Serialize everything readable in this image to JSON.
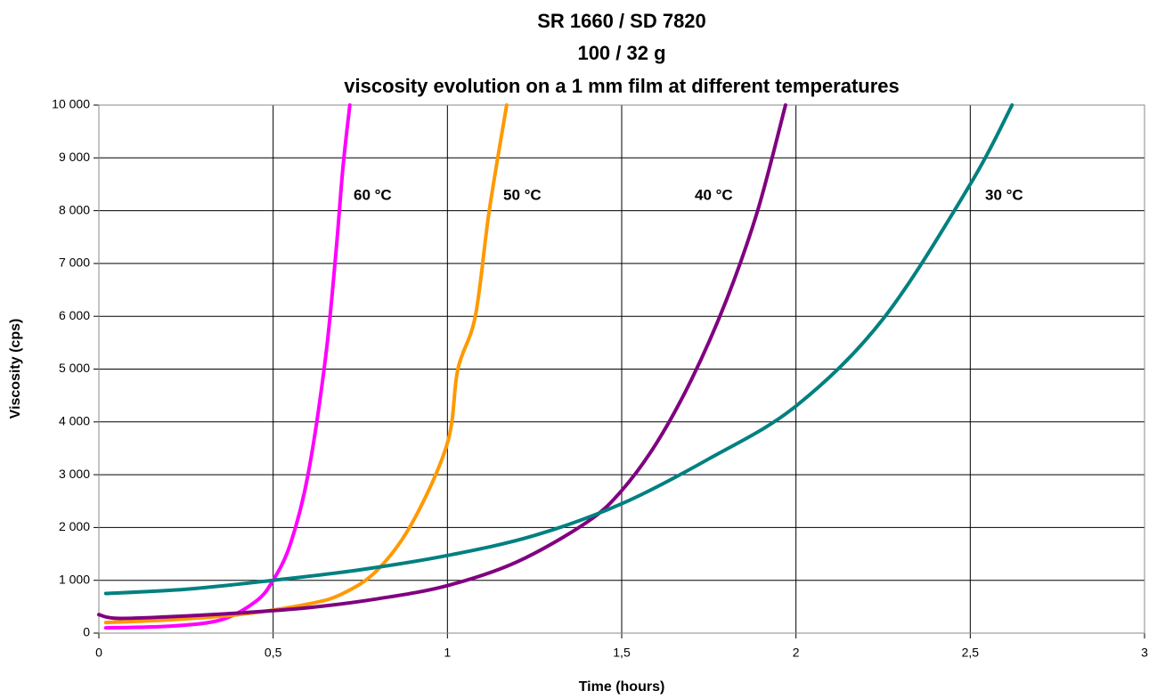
{
  "chart_data": {
    "type": "line",
    "title": [
      "SR 1660 / SD 7820",
      "100 / 32 g",
      "viscosity evolution on a 1 mm film at different temperatures"
    ],
    "x_label": "Time (hours)",
    "y_label": "Viscosity (cps)",
    "xlim": [
      0,
      3
    ],
    "xticks": [
      0,
      {
        "value": 0.5,
        "label": "0,5"
      },
      1,
      {
        "value": 1.5,
        "label": "1,5"
      },
      2,
      {
        "value": 2.5,
        "label": "2,5"
      },
      3
    ],
    "ylim": [
      0,
      10000
    ],
    "yticks": [
      0,
      {
        "value": 1000,
        "label": "1 000"
      },
      {
        "value": 2000,
        "label": "2 000"
      },
      {
        "value": 3000,
        "label": "3 000"
      },
      {
        "value": 4000,
        "label": "4 000"
      },
      {
        "value": 5000,
        "label": "5 000"
      },
      {
        "value": 6000,
        "label": "6 000"
      },
      {
        "value": 7000,
        "label": "7 000"
      },
      {
        "value": 8000,
        "label": "8 000"
      },
      {
        "value": 9000,
        "label": "9 000"
      },
      {
        "value": 10000,
        "label": "10 000"
      }
    ],
    "grid": true,
    "series": [
      {
        "name": "60 °C",
        "color": "#ff00ff",
        "x": [
          0.02,
          0.2,
          0.35,
          0.45,
          0.5,
          0.55,
          0.6,
          0.65,
          0.68,
          0.7,
          0.72
        ],
        "values": [
          100,
          130,
          250,
          600,
          1000,
          1700,
          3000,
          5200,
          7200,
          8800,
          10000
        ]
      },
      {
        "name": "50 °C",
        "color": "#ff9900",
        "x": [
          0.02,
          0.2,
          0.4,
          0.6,
          0.7,
          0.8,
          0.9,
          1.0,
          1.03,
          1.08,
          1.12,
          1.17
        ],
        "values": [
          200,
          250,
          350,
          550,
          750,
          1200,
          2100,
          3600,
          5000,
          6000,
          8000,
          10000
        ]
      },
      {
        "name": "40 °C",
        "color": "#800080",
        "x": [
          0.0,
          0.05,
          0.2,
          0.4,
          0.6,
          0.8,
          1.0,
          1.2,
          1.4,
          1.5,
          1.6,
          1.7,
          1.8,
          1.89,
          1.97
        ],
        "values": [
          350,
          280,
          310,
          380,
          480,
          650,
          900,
          1350,
          2100,
          2700,
          3600,
          4800,
          6300,
          8000,
          10000
        ]
      },
      {
        "name": "30 °C",
        "color": "#008080",
        "x": [
          0.02,
          0.25,
          0.5,
          0.75,
          1.0,
          1.25,
          1.5,
          1.75,
          2.0,
          2.25,
          2.5,
          2.62
        ],
        "values": [
          750,
          830,
          1000,
          1200,
          1470,
          1850,
          2450,
          3300,
          4300,
          5950,
          8500,
          10000
        ]
      }
    ]
  }
}
